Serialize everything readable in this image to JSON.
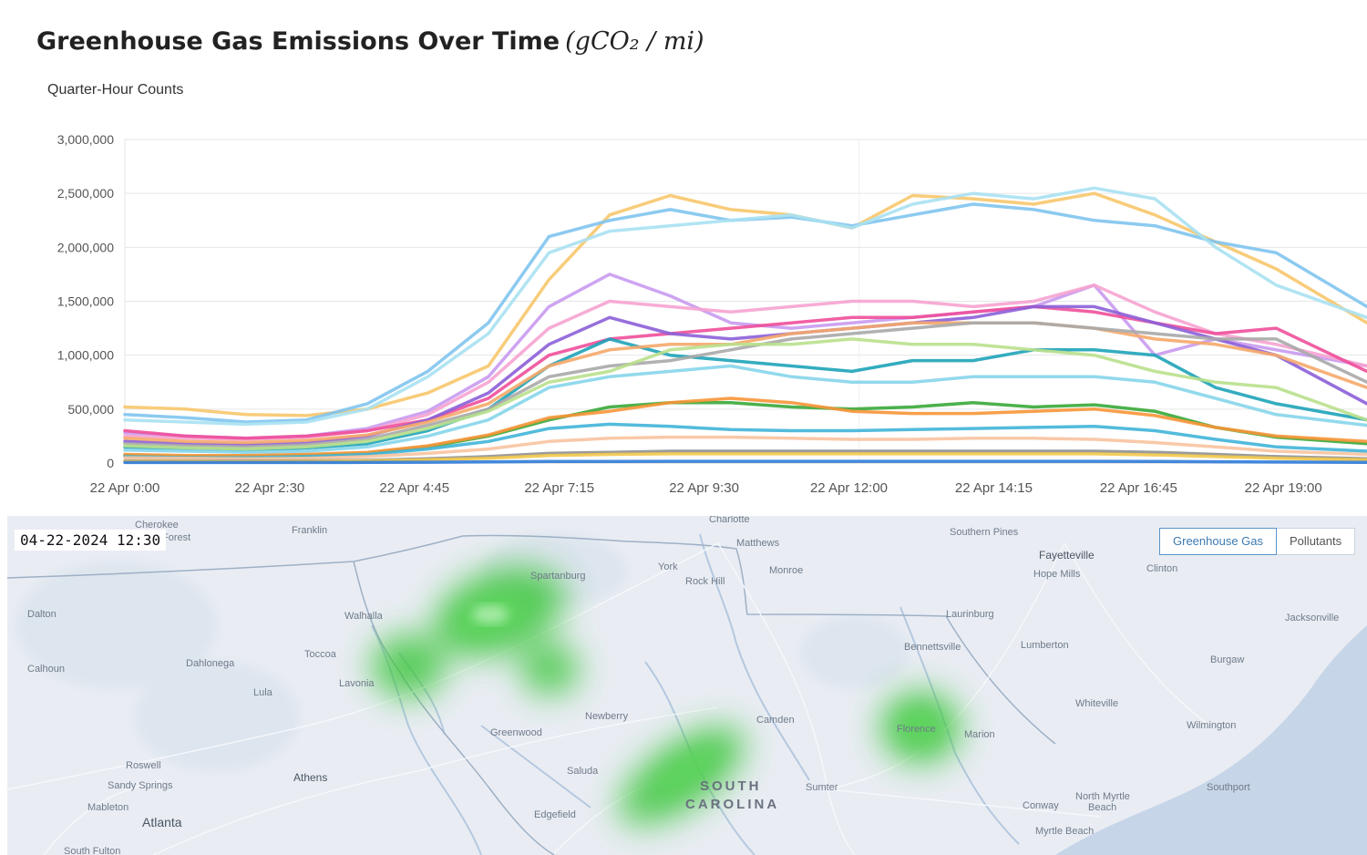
{
  "header": {
    "title": "Greenhouse Gas Emissions Over Time",
    "unit": "(gCO₂ / mi)",
    "subtitle": "Quarter-Hour Counts"
  },
  "colors": {
    "background": "#ffffff",
    "gridline": "#e6e6e6",
    "map_background": "#e9edf3",
    "heat": "#3cc63c"
  },
  "chart_data": {
    "type": "line",
    "title": "Greenhouse Gas Emissions Over Time (gCO₂ / mi)",
    "subtitle": "Quarter-Hour Counts",
    "x_ticks": [
      "22 Apr 0:00",
      "22 Apr 2:30",
      "22 Apr 4:45",
      "22 Apr 7:15",
      "22 Apr 9:30",
      "22 Apr 12:00",
      "22 Apr 14:15",
      "22 Apr 16:45",
      "22 Apr 19:00"
    ],
    "y_ticks": [
      "0",
      "500,000",
      "1,000,000",
      "1,500,000",
      "2,000,000",
      "2,500,000",
      "3,000,000"
    ],
    "x_range_hours": [
      0,
      20.5
    ],
    "ylim": [
      0,
      3000000
    ],
    "grid": true,
    "legend": "none",
    "x_hours": [
      0,
      1,
      2,
      3,
      4,
      5,
      6,
      7,
      8,
      9,
      10,
      11,
      12,
      13,
      14,
      15,
      16,
      17,
      18,
      19,
      20.5
    ],
    "series": [
      {
        "color": "#f7c66b",
        "values": [
          520000,
          500000,
          450000,
          440000,
          500000,
          650000,
          900000,
          1700000,
          2300000,
          2480000,
          2350000,
          2300000,
          2180000,
          2480000,
          2450000,
          2400000,
          2500000,
          2300000,
          2050000,
          1800000,
          1300000
        ]
      },
      {
        "color": "#7fc4ee",
        "values": [
          450000,
          420000,
          380000,
          400000,
          550000,
          850000,
          1300000,
          2100000,
          2250000,
          2350000,
          2250000,
          2280000,
          2200000,
          2300000,
          2400000,
          2350000,
          2250000,
          2200000,
          2050000,
          1950000,
          1450000
        ]
      },
      {
        "color": "#a8e1f2",
        "values": [
          400000,
          380000,
          360000,
          380000,
          500000,
          800000,
          1200000,
          1950000,
          2150000,
          2200000,
          2250000,
          2300000,
          2180000,
          2400000,
          2500000,
          2450000,
          2550000,
          2450000,
          2000000,
          1650000,
          1350000
        ]
      },
      {
        "color": "#c99af0",
        "values": [
          280000,
          250000,
          230000,
          250000,
          320000,
          480000,
          800000,
          1450000,
          1750000,
          1550000,
          1300000,
          1250000,
          1300000,
          1350000,
          1400000,
          1450000,
          1650000,
          1000000,
          1150000,
          1050000,
          900000
        ]
      },
      {
        "color": "#f6a3d0",
        "values": [
          250000,
          230000,
          220000,
          240000,
          300000,
          450000,
          750000,
          1250000,
          1500000,
          1450000,
          1400000,
          1450000,
          1500000,
          1500000,
          1450000,
          1500000,
          1650000,
          1400000,
          1200000,
          1100000,
          900000
        ]
      },
      {
        "color": "#ee4f9a",
        "values": [
          300000,
          250000,
          230000,
          250000,
          300000,
          400000,
          600000,
          1000000,
          1150000,
          1200000,
          1250000,
          1300000,
          1350000,
          1350000,
          1400000,
          1450000,
          1400000,
          1300000,
          1200000,
          1250000,
          850000
        ]
      },
      {
        "color": "#8c5fd8",
        "values": [
          200000,
          180000,
          170000,
          190000,
          250000,
          400000,
          650000,
          1100000,
          1350000,
          1200000,
          1150000,
          1200000,
          1250000,
          1300000,
          1350000,
          1450000,
          1450000,
          1300000,
          1150000,
          1000000,
          550000
        ]
      },
      {
        "color": "#1ea3b8",
        "values": [
          150000,
          130000,
          120000,
          140000,
          180000,
          300000,
          500000,
          900000,
          1150000,
          1000000,
          950000,
          900000,
          850000,
          950000,
          950000,
          1050000,
          1050000,
          1000000,
          700000,
          550000,
          400000
        ]
      },
      {
        "color": "#f5a86a",
        "values": [
          230000,
          200000,
          190000,
          210000,
          260000,
          380000,
          550000,
          900000,
          1050000,
          1100000,
          1100000,
          1200000,
          1250000,
          1300000,
          1300000,
          1300000,
          1250000,
          1150000,
          1100000,
          1000000,
          700000
        ]
      },
      {
        "color": "#a9a9a9",
        "values": [
          180000,
          160000,
          150000,
          170000,
          220000,
          350000,
          500000,
          800000,
          900000,
          950000,
          1050000,
          1150000,
          1200000,
          1250000,
          1300000,
          1300000,
          1250000,
          1200000,
          1150000,
          1150000,
          750000
        ]
      },
      {
        "color": "#b9e08c",
        "values": [
          160000,
          140000,
          130000,
          150000,
          200000,
          320000,
          480000,
          750000,
          850000,
          1050000,
          1100000,
          1100000,
          1150000,
          1100000,
          1100000,
          1050000,
          1000000,
          850000,
          750000,
          700000,
          400000
        ]
      },
      {
        "color": "#86d5ea",
        "values": [
          120000,
          110000,
          100000,
          110000,
          150000,
          250000,
          400000,
          700000,
          800000,
          850000,
          900000,
          800000,
          750000,
          750000,
          800000,
          800000,
          800000,
          750000,
          600000,
          450000,
          350000
        ]
      },
      {
        "color": "#38a838",
        "values": [
          70000,
          60000,
          60000,
          70000,
          90000,
          150000,
          250000,
          400000,
          520000,
          560000,
          560000,
          520000,
          500000,
          520000,
          560000,
          520000,
          540000,
          480000,
          330000,
          240000,
          180000
        ]
      },
      {
        "color": "#f79537",
        "values": [
          80000,
          70000,
          70000,
          80000,
          100000,
          160000,
          260000,
          420000,
          480000,
          560000,
          600000,
          560000,
          480000,
          460000,
          460000,
          480000,
          500000,
          440000,
          330000,
          250000,
          200000
        ]
      },
      {
        "color": "#40b4d8",
        "values": [
          60000,
          50000,
          50000,
          60000,
          80000,
          130000,
          200000,
          320000,
          360000,
          340000,
          310000,
          300000,
          300000,
          310000,
          320000,
          330000,
          340000,
          300000,
          220000,
          150000,
          110000
        ]
      },
      {
        "color": "#f8c3a0",
        "values": [
          50000,
          45000,
          40000,
          45000,
          60000,
          90000,
          130000,
          200000,
          230000,
          240000,
          240000,
          230000,
          220000,
          220000,
          230000,
          230000,
          220000,
          190000,
          150000,
          110000,
          80000
        ]
      },
      {
        "color": "#909090",
        "values": [
          20000,
          18000,
          18000,
          20000,
          25000,
          40000,
          60000,
          90000,
          100000,
          110000,
          110000,
          110000,
          110000,
          110000,
          110000,
          110000,
          110000,
          100000,
          80000,
          60000,
          40000
        ]
      },
      {
        "color": "#f2c94c",
        "values": [
          15000,
          14000,
          13000,
          15000,
          20000,
          30000,
          45000,
          70000,
          80000,
          85000,
          85000,
          85000,
          85000,
          85000,
          85000,
          85000,
          85000,
          75000,
          60000,
          45000,
          30000
        ]
      },
      {
        "color": "#2f7bd8",
        "values": [
          5000,
          5000,
          5000,
          5000,
          6000,
          8000,
          10000,
          14000,
          15000,
          16000,
          16000,
          16000,
          16000,
          16000,
          16000,
          16000,
          16000,
          15000,
          12000,
          9000,
          7000
        ]
      }
    ]
  },
  "map": {
    "timestamp": "04-22-2024 12:30",
    "toggle": {
      "greenhouse_label": "Greenhouse Gas",
      "pollutants_label": "Pollutants",
      "active": "Greenhouse Gas"
    },
    "state_label_1": "SOUTH",
    "state_label_2": "CAROLINA",
    "places": {
      "charlotte": "Charlotte",
      "cherokee": "Cherokee",
      "forest": "Forest",
      "franklin": "Franklin",
      "matthews": "Matthews",
      "southern_pines": "Southern Pines",
      "fayetteville": "Fayetteville",
      "hope_mills": "Hope Mills",
      "clinton": "Clinton",
      "york": "York",
      "rock_hill": "Rock Hill",
      "monroe": "Monroe",
      "dalton": "Dalton",
      "walhalla": "Walhalla",
      "laurinburg": "Laurinburg",
      "jacksonville": "Jacksonville",
      "dahlonega": "Dahlonega",
      "toccoa": "Toccoa",
      "calhoun": "Calhoun",
      "lavonia": "Lavonia",
      "lula": "Lula",
      "bennettsville": "Bennettsville",
      "lumberton": "Lumberton",
      "burgaw": "Burgaw",
      "whiteville": "Whiteville",
      "newberry": "Newberry",
      "camden": "Camden",
      "greenwood": "Greenwood",
      "wilmington": "Wilmington",
      "marion": "Marion",
      "florence": "Florence",
      "roswell": "Roswell",
      "sandy_springs": "Sandy Springs",
      "athens": "Athens",
      "saluda": "Saluda",
      "sumter": "Sumter",
      "southport": "Southport",
      "mableton": "Mableton",
      "atlanta": "Atlanta",
      "edgefield": "Edgefield",
      "conway": "Conway",
      "north_myrtle_beach_1": "North Myrtle",
      "north_myrtle_beach_2": "Beach",
      "myrtle_beach": "Myrtle Beach",
      "south_fulton": "South Fulton",
      "spartanburg": "Spartanburg"
    }
  }
}
